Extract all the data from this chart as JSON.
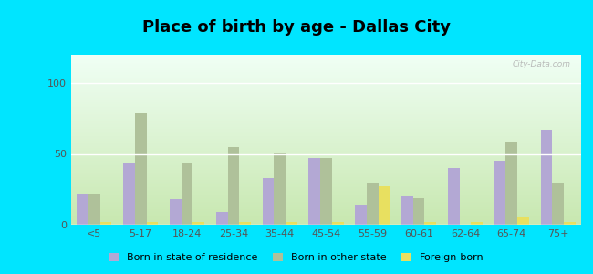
{
  "title": "Place of birth by age - Dallas City",
  "categories": [
    "<5",
    "5-17",
    "18-24",
    "25-34",
    "35-44",
    "45-54",
    "55-59",
    "60-61",
    "62-64",
    "65-74",
    "75+"
  ],
  "born_in_state": [
    22,
    43,
    18,
    9,
    33,
    47,
    14,
    20,
    40,
    45,
    67
  ],
  "born_other_state": [
    22,
    79,
    44,
    55,
    51,
    47,
    30,
    19,
    0,
    59,
    30
  ],
  "foreign_born": [
    2,
    2,
    2,
    2,
    2,
    2,
    27,
    2,
    2,
    5,
    2
  ],
  "ylim": [
    0,
    120
  ],
  "yticks": [
    0,
    50,
    100
  ],
  "bar_width": 0.25,
  "color_state": "#b3a8d4",
  "color_other": "#afc19a",
  "color_foreign": "#e8e060",
  "outer_bg": "#00e5ff",
  "legend_labels": [
    "Born in state of residence",
    "Born in other state",
    "Foreign-born"
  ],
  "watermark": "City-Data.com",
  "title_fontsize": 13,
  "tick_fontsize": 8
}
